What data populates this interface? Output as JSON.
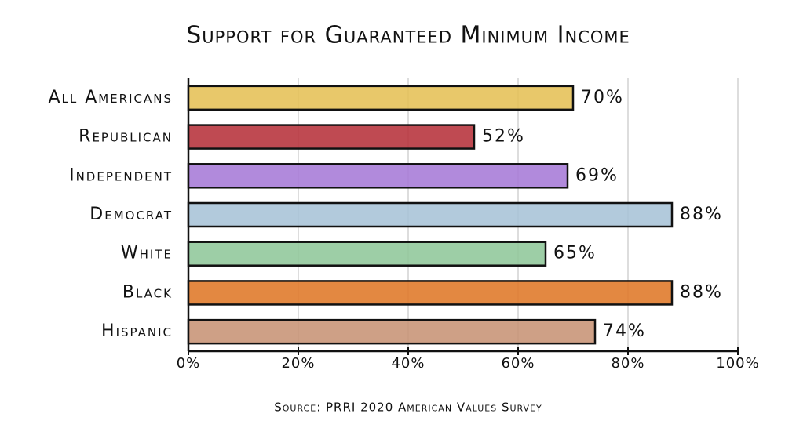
{
  "chart_data": {
    "type": "bar",
    "orientation": "horizontal",
    "title": "Support for Guaranteed Minimum Income",
    "categories": [
      "All Americans",
      "Republican",
      "Independent",
      "Democrat",
      "White",
      "Black",
      "Hispanic"
    ],
    "values": [
      70,
      52,
      69,
      88,
      65,
      88,
      74
    ],
    "value_labels": [
      "70%",
      "52%",
      "69%",
      "88%",
      "65%",
      "88%",
      "74%"
    ],
    "colors": [
      "#e6c25a",
      "#b8363f",
      "#a97dd8",
      "#aac4d8",
      "#92c99c",
      "#e07b2c",
      "#c99679"
    ],
    "xlim": [
      0,
      100
    ],
    "xticks": [
      {
        "value": 0,
        "label": "0%"
      },
      {
        "value": 20,
        "label": "20%"
      },
      {
        "value": 40,
        "label": "40%"
      },
      {
        "value": 60,
        "label": "60%"
      },
      {
        "value": 80,
        "label": "80%"
      },
      {
        "value": 100,
        "label": "100%"
      }
    ],
    "grid": true,
    "source": "Source: PRRI 2020 American Values Survey"
  }
}
